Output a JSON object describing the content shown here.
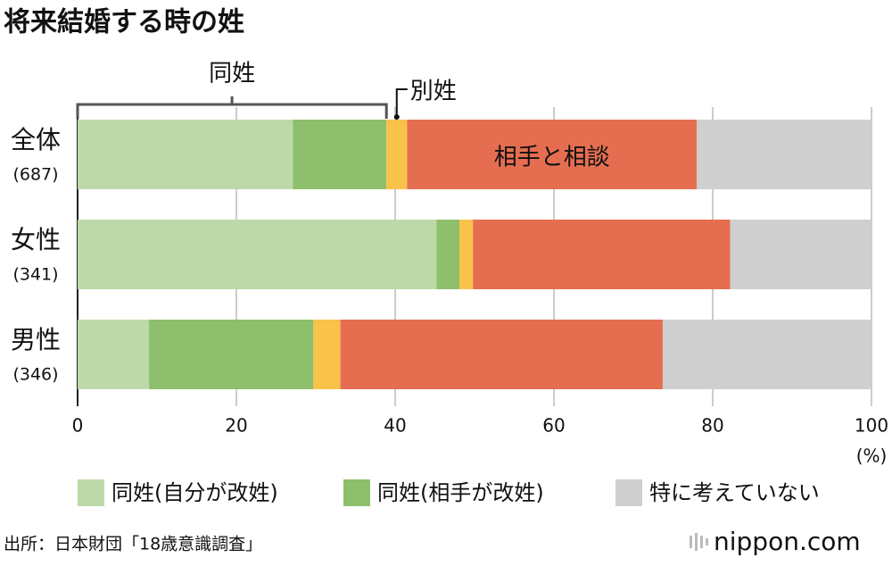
{
  "chart_data": {
    "type": "stacked-barh",
    "title": "将来結婚する時の姓",
    "categories": [
      "全体",
      "女性",
      "男性"
    ],
    "category_counts": [
      "(687)",
      "(341)",
      "(346)"
    ],
    "series": [
      {
        "name": "同姓(自分が改姓)",
        "color": "#bed9a9",
        "values": [
          27.1,
          45.2,
          9.0
        ]
      },
      {
        "name": "同姓(相手が改姓)",
        "color": "#8dbf6c",
        "values": [
          11.8,
          2.9,
          20.7
        ]
      },
      {
        "color": "#f9c24a",
        "values": [
          2.6,
          1.7,
          3.4
        ]
      },
      {
        "color": "#e56e51",
        "values": [
          36.5,
          32.4,
          40.6
        ]
      },
      {
        "name": "特に考えていない",
        "color": "#cfcfcf",
        "values": [
          22.0,
          17.8,
          26.3
        ]
      }
    ],
    "annotations": {
      "same": "同姓",
      "separate": "別姓",
      "discuss": "相手と相談"
    },
    "x_unit": "(%)",
    "xlim": [
      0,
      100
    ],
    "xticks": [
      0,
      20,
      40,
      60,
      80,
      100
    ],
    "grid": true,
    "source": "出所：日本財団「18歳意識調査」",
    "logo": "nippon.com"
  }
}
